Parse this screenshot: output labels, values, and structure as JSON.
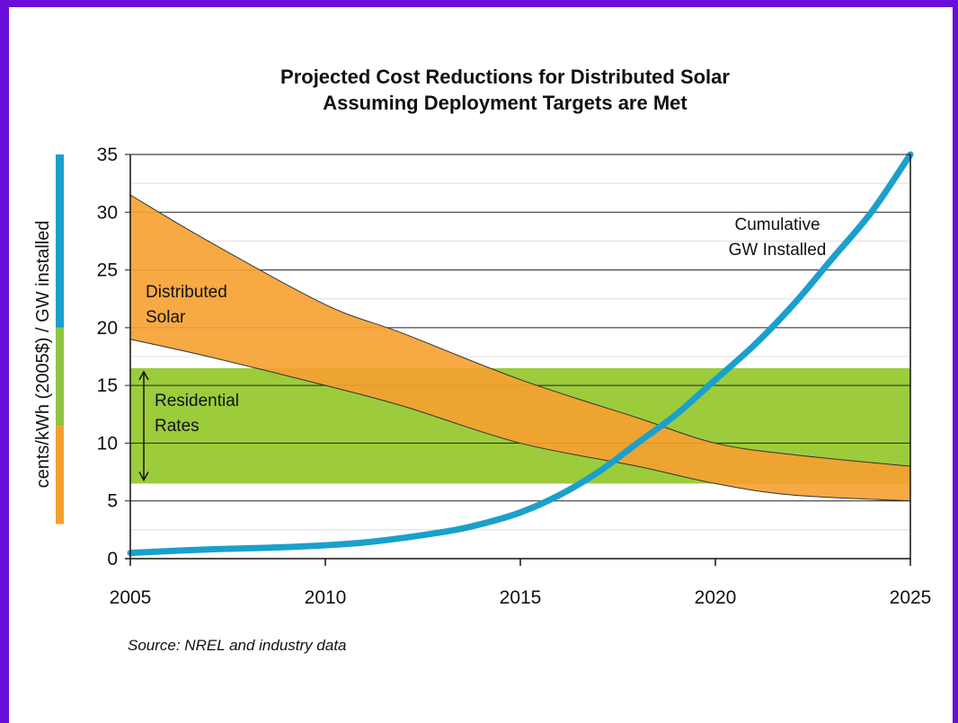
{
  "chart_data": {
    "type": "line",
    "title_lines": [
      "Projected Cost Reductions for Distributed Solar",
      "Assuming Deployment Targets are Met"
    ],
    "ylabel": "cents/kWh (2005$) / GW installed",
    "source": "Source:  NREL and industry data",
    "xlim": [
      2005,
      2025
    ],
    "ylim": [
      0,
      35
    ],
    "x_ticks": [
      "2005",
      "2010",
      "2015",
      "2020",
      "2025"
    ],
    "y_ticks": [
      "0",
      "5",
      "10",
      "15",
      "20",
      "25",
      "30",
      "35"
    ],
    "grid": "horizontal",
    "residential_rates_band": {
      "label_lines": [
        "Residential",
        "Rates"
      ],
      "low": 6.5,
      "high": 16.5,
      "color": "#9ccc3c"
    },
    "distributed_solar_band": {
      "label_lines": [
        "Distributed",
        "Solar"
      ],
      "color": "#f6a030",
      "x": [
        2005,
        2007,
        2010,
        2012,
        2015,
        2018,
        2020,
        2022,
        2025
      ],
      "upper": [
        31.5,
        27.5,
        22.0,
        19.5,
        15.5,
        12.2,
        10.0,
        9.0,
        8.0
      ],
      "lower": [
        19.0,
        17.5,
        15.0,
        13.2,
        10.0,
        8.0,
        6.5,
        5.5,
        5.0
      ]
    },
    "series": [
      {
        "name": "Cumulative GW Installed",
        "label_lines": [
          "Cumulative",
          "GW Installed"
        ],
        "color": "#1aa0cc",
        "x": [
          2005,
          2007,
          2009,
          2011,
          2013,
          2014,
          2015,
          2016,
          2017,
          2018,
          2019,
          2020,
          2021,
          2022,
          2023,
          2024,
          2025
        ],
        "values": [
          0.5,
          0.8,
          1.0,
          1.4,
          2.3,
          3.0,
          4.0,
          5.5,
          7.5,
          10.0,
          12.5,
          15.5,
          18.5,
          22.0,
          26.0,
          30.0,
          35.0
        ]
      }
    ],
    "ylabel_axis_bars": [
      {
        "range": [
          20,
          35
        ],
        "color": "#1aa0cc"
      },
      {
        "range": [
          11.5,
          20
        ],
        "color": "#8cc63e"
      },
      {
        "range": [
          3,
          11.5
        ],
        "color": "#f6a030"
      }
    ]
  }
}
